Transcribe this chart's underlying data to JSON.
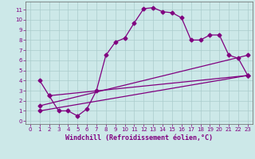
{
  "xlabel": "Windchill (Refroidissement éolien,°C)",
  "background_color": "#cce8e8",
  "grid_color": "#aacccc",
  "line_color": "#800080",
  "spine_color": "#666666",
  "xlim": [
    -0.5,
    23.5
  ],
  "ylim": [
    -0.3,
    11.8
  ],
  "xticks": [
    0,
    1,
    2,
    3,
    4,
    5,
    6,
    7,
    8,
    9,
    10,
    11,
    12,
    13,
    14,
    15,
    16,
    17,
    18,
    19,
    20,
    21,
    22,
    23
  ],
  "yticks": [
    0,
    1,
    2,
    3,
    4,
    5,
    6,
    7,
    8,
    9,
    10,
    11
  ],
  "series1_x": [
    1,
    2,
    3,
    4,
    5,
    6,
    7,
    8,
    9,
    10,
    11,
    12,
    13,
    14,
    15,
    16,
    17,
    18,
    19,
    20,
    21,
    22,
    23
  ],
  "series1_y": [
    4.0,
    2.5,
    1.0,
    1.0,
    0.5,
    1.2,
    3.0,
    6.5,
    7.8,
    8.2,
    9.7,
    11.1,
    11.2,
    10.8,
    10.7,
    10.2,
    8.0,
    8.0,
    8.5,
    8.5,
    6.5,
    6.2,
    4.5
  ],
  "series2_x": [
    1,
    23
  ],
  "series2_y": [
    1.0,
    4.5
  ],
  "series3_x": [
    2,
    23
  ],
  "series3_y": [
    2.5,
    4.5
  ],
  "series4_x": [
    1,
    23
  ],
  "series4_y": [
    1.5,
    6.5
  ],
  "marker": "D",
  "markersize": 2.5,
  "linewidth": 0.9,
  "tick_fontsize": 5,
  "xlabel_fontsize": 6
}
